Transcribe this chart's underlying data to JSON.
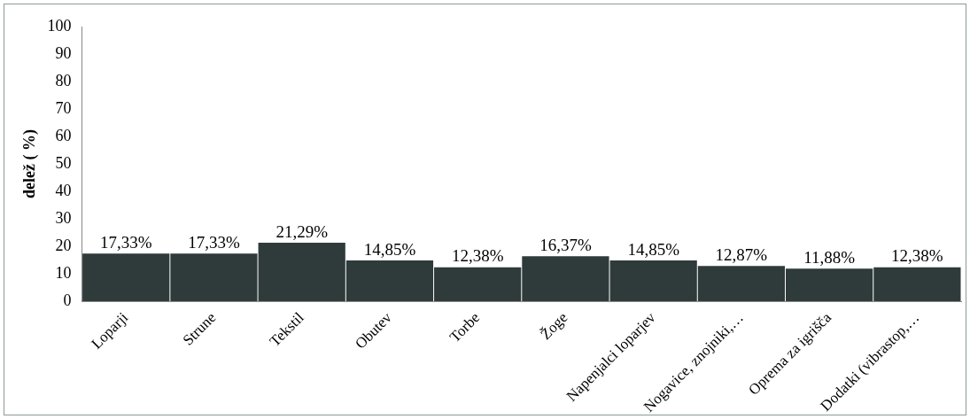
{
  "chart_data": {
    "type": "bar",
    "ylabel": "delež ( %)",
    "categories": [
      "Loparji",
      "Strune",
      "Tekstil",
      "Obutev",
      "Torbe",
      "Žoge",
      "Napenjalci loparjev",
      "Nogavice, znojniki,…",
      "Oprema za igrišča",
      "Dodatki (vibrastop,…"
    ],
    "values": [
      17.33,
      17.33,
      21.29,
      14.85,
      12.38,
      16.37,
      14.85,
      12.87,
      11.88,
      12.38
    ],
    "value_labels": [
      "17,33%",
      "17,33%",
      "21,29%",
      "14,85%",
      "12,38%",
      "16,37%",
      "14,85%",
      "12,87%",
      "11,88%",
      "12,38%"
    ],
    "color": "#2f3b3b",
    "ylim": [
      0,
      100
    ],
    "yticks": [
      0,
      10,
      20,
      30,
      40,
      50,
      60,
      70,
      80,
      90,
      100
    ],
    "grid": false,
    "legend": false
  }
}
